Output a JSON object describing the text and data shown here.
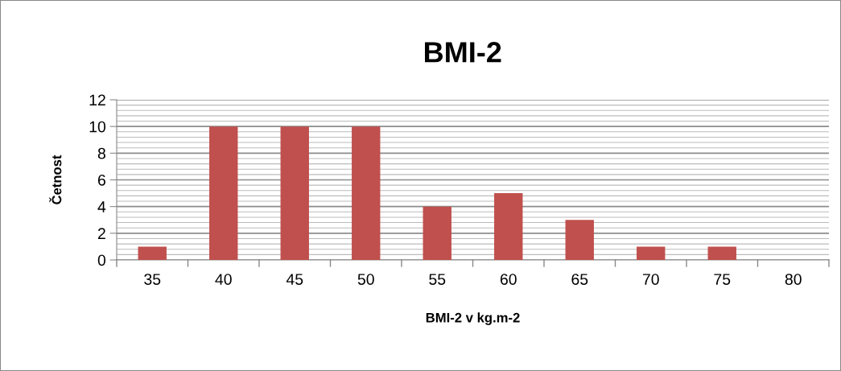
{
  "chart_data": {
    "type": "bar",
    "title": "BMI-2",
    "xlabel": "BMI-2 v kg.m-2",
    "ylabel": "Četnost",
    "categories": [
      "35",
      "40",
      "45",
      "50",
      "55",
      "60",
      "65",
      "70",
      "75",
      "80"
    ],
    "values": [
      1,
      10,
      10,
      10,
      4,
      5,
      3,
      1,
      1,
      0
    ],
    "color": "#c0504d",
    "ylim": [
      0,
      12
    ],
    "yticks": [
      0,
      2,
      4,
      6,
      8,
      10,
      12
    ],
    "grid": "y",
    "legend": false
  }
}
